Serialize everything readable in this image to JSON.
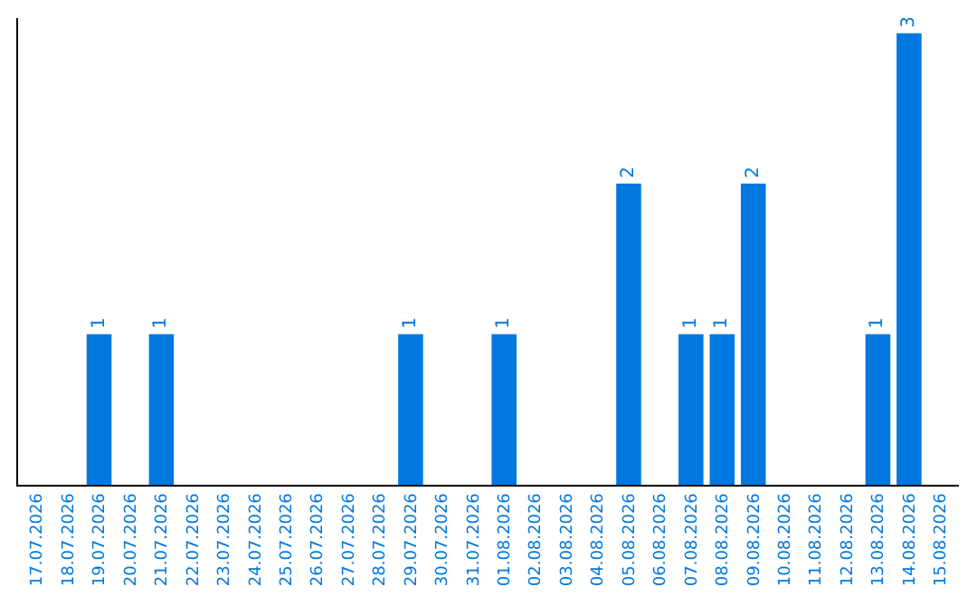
{
  "chart_data": {
    "type": "bar",
    "categories": [
      "17.07.2026",
      "18.07.2026",
      "19.07.2026",
      "20.07.2026",
      "21.07.2026",
      "22.07.2026",
      "23.07.2026",
      "24.07.2026",
      "25.07.2026",
      "26.07.2026",
      "27.07.2026",
      "28.07.2026",
      "29.07.2026",
      "30.07.2026",
      "31.07.2026",
      "01.08.2026",
      "02.08.2026",
      "03.08.2026",
      "04.08.2026",
      "05.08.2026",
      "06.08.2026",
      "07.08.2026",
      "08.08.2026",
      "09.08.2026",
      "10.08.2026",
      "11.08.2026",
      "12.08.2026",
      "13.08.2026",
      "14.08.2026",
      "15.08.2026"
    ],
    "values": [
      0,
      0,
      1,
      0,
      1,
      0,
      0,
      0,
      0,
      0,
      0,
      0,
      1,
      0,
      0,
      1,
      0,
      0,
      0,
      2,
      0,
      1,
      1,
      2,
      0,
      0,
      0,
      1,
      3,
      0
    ],
    "value_labels": [
      null,
      null,
      "1",
      null,
      "1",
      null,
      null,
      null,
      null,
      null,
      null,
      null,
      "1",
      null,
      null,
      "1",
      null,
      null,
      null,
      "2",
      null,
      "1",
      "1",
      "2",
      null,
      null,
      null,
      "1",
      "3",
      null
    ],
    "color": "#0078e0",
    "ylim": [
      0,
      3.1
    ],
    "tick_labels": "x",
    "legend": false
  }
}
